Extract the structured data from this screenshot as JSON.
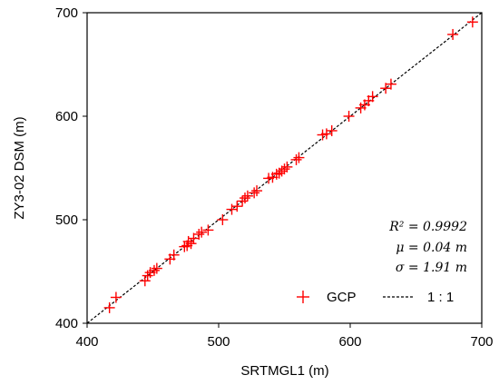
{
  "chart_data": {
    "type": "scatter",
    "xlabel": "SRTMGL1 (m)",
    "ylabel": "ZY3-02 DSM (m)",
    "xlim": [
      400,
      700
    ],
    "ylim": [
      400,
      700
    ],
    "xticks": [
      "400",
      "500",
      "600",
      "700"
    ],
    "yticks": [
      "400",
      "500",
      "600",
      "700"
    ],
    "grid": false,
    "legend_placement": "bottom-right",
    "stats": {
      "r2": "R² = 0.9992",
      "mu": "μ = 0.04 m",
      "sigma": "σ = 1.91 m"
    },
    "series": [
      {
        "name": "GCP",
        "marker": "plus",
        "color": "#ff0000",
        "points": [
          [
            417,
            415
          ],
          [
            422,
            425
          ],
          [
            444,
            441
          ],
          [
            446,
            446
          ],
          [
            448,
            449
          ],
          [
            451,
            451
          ],
          [
            453,
            453
          ],
          [
            463,
            462
          ],
          [
            466,
            466
          ],
          [
            474,
            474
          ],
          [
            476,
            475
          ],
          [
            477,
            479
          ],
          [
            479,
            477
          ],
          [
            481,
            482
          ],
          [
            485,
            486
          ],
          [
            487,
            488
          ],
          [
            492,
            490
          ],
          [
            503,
            500
          ],
          [
            510,
            510
          ],
          [
            514,
            513
          ],
          [
            518,
            518
          ],
          [
            520,
            521
          ],
          [
            522,
            523
          ],
          [
            527,
            526
          ],
          [
            529,
            528
          ],
          [
            538,
            540
          ],
          [
            541,
            541
          ],
          [
            544,
            544
          ],
          [
            546,
            545
          ],
          [
            548,
            547
          ],
          [
            550,
            549
          ],
          [
            552,
            551
          ],
          [
            559,
            558
          ],
          [
            561,
            560
          ],
          [
            579,
            582
          ],
          [
            582,
            583
          ],
          [
            586,
            586
          ],
          [
            599,
            600
          ],
          [
            608,
            608
          ],
          [
            611,
            611
          ],
          [
            614,
            615
          ],
          [
            617,
            619
          ],
          [
            627,
            627
          ],
          [
            631,
            631
          ],
          [
            678,
            679
          ],
          [
            693,
            691
          ]
        ]
      },
      {
        "name": "1 : 1",
        "style": "dashed",
        "color": "#000000",
        "points": [
          [
            400,
            400
          ],
          [
            700,
            700
          ]
        ]
      }
    ]
  }
}
